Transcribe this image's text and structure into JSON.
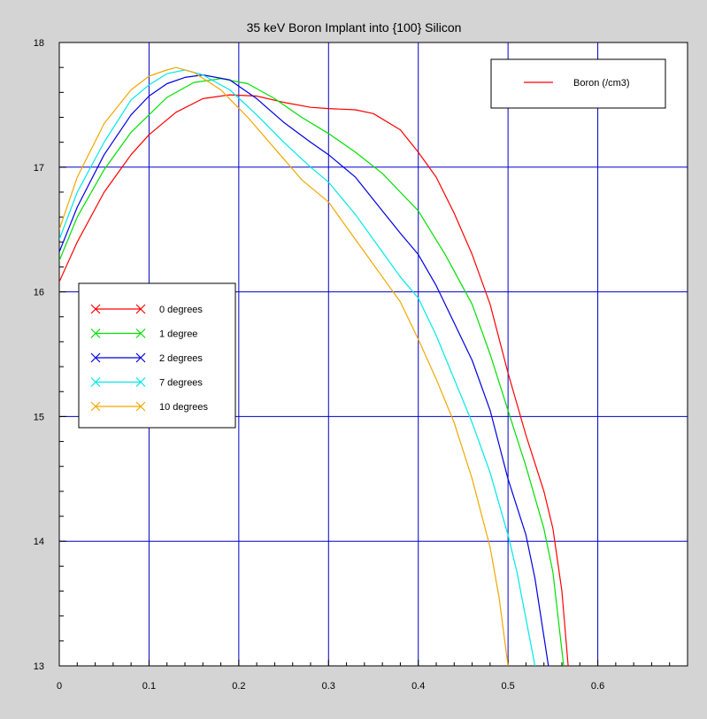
{
  "chart_data": {
    "type": "line",
    "title": "35 keV Boron Implant into {100} Silicon",
    "xlabel": "",
    "ylabel": "",
    "xlim": [
      0,
      0.7
    ],
    "ylim": [
      13,
      18
    ],
    "x_ticks": [
      0,
      0.1,
      0.2,
      0.3,
      0.4,
      0.5,
      0.6
    ],
    "x_tick_labels": [
      "0",
      "0.1",
      "0.2",
      "0.3",
      "0.4",
      "0.5",
      "0.6"
    ],
    "y_ticks": [
      13,
      14,
      15,
      16,
      17,
      18
    ],
    "y_tick_labels": [
      "13",
      "14",
      "15",
      "16",
      "17",
      "18"
    ],
    "grid": true,
    "quantity_legend": {
      "placement": "top-right",
      "entries": [
        {
          "label": "Boron (/cm3)",
          "color": "#ff0000"
        }
      ]
    },
    "series_legend": {
      "placement": "middle-left",
      "entries": [
        {
          "label": "0 degrees",
          "color": "#ff0000"
        },
        {
          "label": "1 degree",
          "color": "#00e000"
        },
        {
          "label": "2 degrees",
          "color": "#0000e0"
        },
        {
          "label": "7 degrees",
          "color": "#00e8e8"
        },
        {
          "label": "10 degrees",
          "color": "#f0a800"
        }
      ]
    },
    "series": [
      {
        "name": "0 degrees",
        "color": "#ff0000",
        "points": [
          [
            0,
            16.08
          ],
          [
            0.02,
            16.4
          ],
          [
            0.05,
            16.8
          ],
          [
            0.08,
            17.1
          ],
          [
            0.1,
            17.26
          ],
          [
            0.13,
            17.44
          ],
          [
            0.16,
            17.55
          ],
          [
            0.19,
            17.58
          ],
          [
            0.22,
            17.57
          ],
          [
            0.25,
            17.52
          ],
          [
            0.28,
            17.48
          ],
          [
            0.3,
            17.47
          ],
          [
            0.33,
            17.46
          ],
          [
            0.35,
            17.43
          ],
          [
            0.38,
            17.3
          ],
          [
            0.4,
            17.12
          ],
          [
            0.42,
            16.92
          ],
          [
            0.44,
            16.63
          ],
          [
            0.46,
            16.3
          ],
          [
            0.48,
            15.9
          ],
          [
            0.5,
            15.35
          ],
          [
            0.52,
            14.85
          ],
          [
            0.54,
            14.4
          ],
          [
            0.55,
            14.1
          ],
          [
            0.56,
            13.6
          ],
          [
            0.567,
            13.0
          ]
        ]
      },
      {
        "name": "1 degree",
        "color": "#00e000",
        "points": [
          [
            0,
            16.25
          ],
          [
            0.02,
            16.6
          ],
          [
            0.05,
            16.98
          ],
          [
            0.08,
            17.28
          ],
          [
            0.1,
            17.42
          ],
          [
            0.12,
            17.56
          ],
          [
            0.15,
            17.68
          ],
          [
            0.18,
            17.71
          ],
          [
            0.21,
            17.67
          ],
          [
            0.24,
            17.55
          ],
          [
            0.27,
            17.4
          ],
          [
            0.3,
            17.27
          ],
          [
            0.33,
            17.12
          ],
          [
            0.36,
            16.95
          ],
          [
            0.38,
            16.8
          ],
          [
            0.4,
            16.65
          ],
          [
            0.43,
            16.3
          ],
          [
            0.46,
            15.9
          ],
          [
            0.48,
            15.5
          ],
          [
            0.5,
            15.05
          ],
          [
            0.52,
            14.6
          ],
          [
            0.54,
            14.1
          ],
          [
            0.55,
            13.75
          ],
          [
            0.562,
            13.0
          ]
        ]
      },
      {
        "name": "2 degrees",
        "color": "#0000e0",
        "points": [
          [
            0,
            16.32
          ],
          [
            0.02,
            16.68
          ],
          [
            0.05,
            17.1
          ],
          [
            0.08,
            17.42
          ],
          [
            0.1,
            17.57
          ],
          [
            0.12,
            17.67
          ],
          [
            0.14,
            17.72
          ],
          [
            0.16,
            17.74
          ],
          [
            0.19,
            17.7
          ],
          [
            0.22,
            17.55
          ],
          [
            0.25,
            17.36
          ],
          [
            0.28,
            17.2
          ],
          [
            0.3,
            17.1
          ],
          [
            0.33,
            16.92
          ],
          [
            0.36,
            16.65
          ],
          [
            0.38,
            16.47
          ],
          [
            0.4,
            16.3
          ],
          [
            0.42,
            16.05
          ],
          [
            0.44,
            15.75
          ],
          [
            0.46,
            15.45
          ],
          [
            0.48,
            15.05
          ],
          [
            0.5,
            14.5
          ],
          [
            0.52,
            14.05
          ],
          [
            0.53,
            13.7
          ],
          [
            0.545,
            13.0
          ]
        ]
      },
      {
        "name": "7 degrees",
        "color": "#00e8e8",
        "points": [
          [
            0,
            16.42
          ],
          [
            0.02,
            16.8
          ],
          [
            0.05,
            17.2
          ],
          [
            0.08,
            17.54
          ],
          [
            0.1,
            17.66
          ],
          [
            0.12,
            17.75
          ],
          [
            0.14,
            17.78
          ],
          [
            0.16,
            17.74
          ],
          [
            0.19,
            17.62
          ],
          [
            0.22,
            17.42
          ],
          [
            0.25,
            17.2
          ],
          [
            0.28,
            17.0
          ],
          [
            0.3,
            16.88
          ],
          [
            0.33,
            16.62
          ],
          [
            0.36,
            16.32
          ],
          [
            0.38,
            16.12
          ],
          [
            0.4,
            15.95
          ],
          [
            0.42,
            15.65
          ],
          [
            0.44,
            15.3
          ],
          [
            0.46,
            14.95
          ],
          [
            0.48,
            14.55
          ],
          [
            0.5,
            14.05
          ],
          [
            0.51,
            13.75
          ],
          [
            0.53,
            13.0
          ]
        ]
      },
      {
        "name": "10 degrees",
        "color": "#f0a800",
        "points": [
          [
            0,
            16.5
          ],
          [
            0.02,
            16.92
          ],
          [
            0.05,
            17.35
          ],
          [
            0.08,
            17.62
          ],
          [
            0.1,
            17.73
          ],
          [
            0.12,
            17.78
          ],
          [
            0.13,
            17.8
          ],
          [
            0.15,
            17.76
          ],
          [
            0.18,
            17.62
          ],
          [
            0.21,
            17.4
          ],
          [
            0.24,
            17.15
          ],
          [
            0.27,
            16.9
          ],
          [
            0.3,
            16.72
          ],
          [
            0.33,
            16.42
          ],
          [
            0.36,
            16.12
          ],
          [
            0.38,
            15.92
          ],
          [
            0.4,
            15.62
          ],
          [
            0.42,
            15.3
          ],
          [
            0.44,
            14.95
          ],
          [
            0.46,
            14.5
          ],
          [
            0.48,
            13.95
          ],
          [
            0.49,
            13.55
          ],
          [
            0.5,
            13.0
          ]
        ]
      }
    ]
  }
}
